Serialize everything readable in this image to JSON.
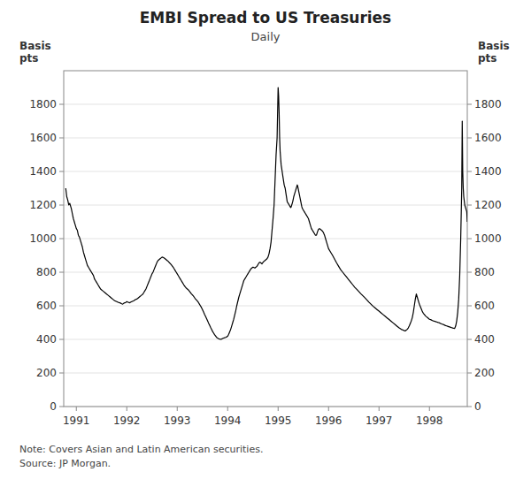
{
  "chart_data": {
    "type": "line",
    "title": "EMBI Spread to US Treasuries",
    "subtitle": "Daily",
    "ylabel": "Basis\npts",
    "y2label": "Basis\npts",
    "note": "Note: Covers Asian and Latin American securities.\nSource: JP Morgan.",
    "color": "#000000",
    "grid": true,
    "xlim": [
      1990.75,
      1998.75
    ],
    "xticks": [
      1991,
      1992,
      1993,
      1994,
      1995,
      1996,
      1997,
      1998
    ],
    "ylim": [
      0,
      2000
    ],
    "yticks": [
      0,
      200,
      400,
      600,
      800,
      1000,
      1200,
      1400,
      1600,
      1800
    ],
    "y2lim": [
      0,
      2000
    ],
    "y2ticks": [
      0,
      200,
      400,
      600,
      800,
      1000,
      1200,
      1400,
      1600,
      1800
    ],
    "x": [
      1990.79,
      1990.81,
      1990.83,
      1990.85,
      1990.87,
      1990.9,
      1990.92,
      1990.94,
      1990.96,
      1990.98,
      1991,
      1991.02,
      1991.04,
      1991.06,
      1991.08,
      1991.1,
      1991.12,
      1991.14,
      1991.16,
      1991.18,
      1991.2,
      1991.22,
      1991.24,
      1991.26,
      1991.28,
      1991.3,
      1991.32,
      1991.34,
      1991.36,
      1991.38,
      1991.4,
      1991.42,
      1991.44,
      1991.46,
      1991.48,
      1991.5,
      1991.52,
      1991.54,
      1991.56,
      1991.58,
      1991.6,
      1991.62,
      1991.64,
      1991.66,
      1991.68,
      1991.7,
      1991.72,
      1991.74,
      1991.76,
      1991.78,
      1991.8,
      1991.82,
      1991.84,
      1991.86,
      1991.88,
      1991.9,
      1991.92,
      1991.94,
      1991.96,
      1991.98,
      1992,
      1992.02,
      1992.04,
      1992.06,
      1992.08,
      1992.1,
      1992.12,
      1992.14,
      1992.16,
      1992.18,
      1992.2,
      1992.22,
      1992.24,
      1992.26,
      1992.28,
      1992.3,
      1992.32,
      1992.34,
      1992.36,
      1992.38,
      1992.4,
      1992.42,
      1992.44,
      1992.46,
      1992.48,
      1992.5,
      1992.52,
      1992.54,
      1992.56,
      1992.58,
      1992.6,
      1992.62,
      1992.64,
      1992.66,
      1992.68,
      1992.7,
      1992.72,
      1992.74,
      1992.76,
      1992.78,
      1992.8,
      1992.82,
      1992.84,
      1992.86,
      1992.88,
      1992.9,
      1992.92,
      1992.94,
      1992.96,
      1992.98,
      1993,
      1993.02,
      1993.04,
      1993.06,
      1993.08,
      1993.1,
      1993.12,
      1993.14,
      1993.16,
      1993.18,
      1993.2,
      1993.22,
      1993.24,
      1993.26,
      1993.28,
      1993.3,
      1993.32,
      1993.34,
      1993.36,
      1993.38,
      1993.4,
      1993.42,
      1993.44,
      1993.46,
      1993.48,
      1993.5,
      1993.52,
      1993.54,
      1993.56,
      1993.58,
      1993.6,
      1993.62,
      1993.64,
      1993.66,
      1993.68,
      1993.7,
      1993.72,
      1993.74,
      1993.76,
      1993.78,
      1993.8,
      1993.82,
      1993.84,
      1993.86,
      1993.88,
      1993.9,
      1993.92,
      1993.94,
      1993.96,
      1993.98,
      1994,
      1994.02,
      1994.04,
      1994.06,
      1994.08,
      1994.1,
      1994.12,
      1994.14,
      1994.16,
      1994.18,
      1994.2,
      1994.22,
      1994.24,
      1994.26,
      1994.28,
      1994.3,
      1994.32,
      1994.34,
      1994.36,
      1994.38,
      1994.4,
      1994.42,
      1994.44,
      1994.46,
      1994.48,
      1994.5,
      1994.52,
      1994.54,
      1994.56,
      1994.58,
      1994.6,
      1994.62,
      1994.64,
      1994.66,
      1994.68,
      1994.7,
      1994.72,
      1994.74,
      1994.76,
      1994.78,
      1994.8,
      1994.82,
      1994.84,
      1994.86,
      1994.88,
      1994.9,
      1994.92,
      1994.94,
      1994.96,
      1994.98,
      1995,
      1995.01,
      1995.02,
      1995.03,
      1995.04,
      1995.05,
      1995.06,
      1995.07,
      1995.08,
      1995.09,
      1995.1,
      1995.11,
      1995.12,
      1995.13,
      1995.14,
      1995.15,
      1995.16,
      1995.17,
      1995.18,
      1995.19,
      1995.2,
      1995.21,
      1995.22,
      1995.23,
      1995.24,
      1995.25,
      1995.26,
      1995.27,
      1995.28,
      1995.29,
      1995.3,
      1995.31,
      1995.32,
      1995.33,
      1995.34,
      1995.35,
      1995.36,
      1995.37,
      1995.38,
      1995.39,
      1995.4,
      1995.41,
      1995.42,
      1995.43,
      1995.44,
      1995.45,
      1995.46,
      1995.47,
      1995.48,
      1995.5,
      1995.52,
      1995.54,
      1995.56,
      1995.58,
      1995.6,
      1995.62,
      1995.64,
      1995.66,
      1995.68,
      1995.7,
      1995.72,
      1995.74,
      1995.76,
      1995.78,
      1995.8,
      1995.82,
      1995.84,
      1995.86,
      1995.88,
      1995.9,
      1995.92,
      1995.94,
      1995.96,
      1995.98,
      1996,
      1996.04,
      1996.08,
      1996.12,
      1996.16,
      1996.2,
      1996.24,
      1996.28,
      1996.32,
      1996.36,
      1996.4,
      1996.44,
      1996.48,
      1996.52,
      1996.56,
      1996.6,
      1996.64,
      1996.68,
      1996.72,
      1996.76,
      1996.8,
      1996.84,
      1996.88,
      1996.92,
      1996.96,
      1997,
      1997.04,
      1997.08,
      1997.12,
      1997.16,
      1997.2,
      1997.24,
      1997.28,
      1997.32,
      1997.36,
      1997.4,
      1997.44,
      1997.48,
      1997.5,
      1997.52,
      1997.54,
      1997.56,
      1997.58,
      1997.6,
      1997.62,
      1997.64,
      1997.66,
      1997.68,
      1997.7,
      1997.72,
      1997.74,
      1997.76,
      1997.78,
      1997.8,
      1997.82,
      1997.84,
      1997.86,
      1997.88,
      1997.9,
      1997.92,
      1997.94,
      1997.96,
      1997.98,
      1998,
      1998.02,
      1998.04,
      1998.06,
      1998.08,
      1998.1,
      1998.12,
      1998.14,
      1998.16,
      1998.18,
      1998.2,
      1998.22,
      1998.24,
      1998.26,
      1998.28,
      1998.3,
      1998.32,
      1998.34,
      1998.36,
      1998.38,
      1998.4,
      1998.42,
      1998.44,
      1998.46,
      1998.48,
      1998.5,
      1998.52,
      1998.54,
      1998.56,
      1998.58,
      1998.6,
      1998.62,
      1998.64,
      1998.65,
      1998.66,
      1998.67,
      1998.68,
      1998.7,
      1998.72,
      1998.74,
      1998.75
    ],
    "values": [
      1300,
      1250,
      1230,
      1200,
      1210,
      1180,
      1150,
      1120,
      1100,
      1080,
      1060,
      1050,
      1020,
      1010,
      990,
      970,
      950,
      920,
      900,
      880,
      860,
      840,
      830,
      820,
      810,
      800,
      790,
      780,
      760,
      750,
      740,
      730,
      720,
      710,
      700,
      695,
      690,
      685,
      680,
      675,
      670,
      665,
      660,
      655,
      650,
      645,
      640,
      635,
      630,
      628,
      625,
      622,
      620,
      618,
      615,
      612,
      610,
      615,
      618,
      620,
      625,
      622,
      620,
      618,
      622,
      625,
      628,
      630,
      635,
      638,
      640,
      645,
      650,
      655,
      660,
      665,
      670,
      680,
      690,
      700,
      715,
      730,
      745,
      760,
      775,
      790,
      800,
      815,
      830,
      845,
      860,
      870,
      875,
      880,
      885,
      890,
      888,
      885,
      880,
      875,
      870,
      865,
      858,
      852,
      845,
      838,
      830,
      820,
      810,
      800,
      790,
      780,
      770,
      760,
      750,
      740,
      730,
      720,
      712,
      705,
      700,
      695,
      688,
      680,
      672,
      665,
      658,
      650,
      642,
      635,
      628,
      620,
      610,
      600,
      590,
      578,
      565,
      550,
      538,
      525,
      512,
      498,
      485,
      472,
      460,
      448,
      438,
      428,
      420,
      412,
      408,
      404,
      402,
      400,
      402,
      405,
      408,
      410,
      412,
      415,
      418,
      430,
      445,
      460,
      480,
      500,
      520,
      545,
      570,
      600,
      625,
      650,
      670,
      690,
      710,
      730,
      750,
      760,
      770,
      780,
      790,
      800,
      810,
      820,
      825,
      830,
      828,
      825,
      830,
      835,
      845,
      855,
      860,
      855,
      850,
      858,
      865,
      870,
      875,
      880,
      890,
      910,
      940,
      980,
      1050,
      1120,
      1200,
      1350,
      1500,
      1600,
      1900,
      1850,
      1750,
      1600,
      1520,
      1480,
      1440,
      1420,
      1400,
      1380,
      1360,
      1340,
      1320,
      1310,
      1300,
      1280,
      1260,
      1240,
      1220,
      1215,
      1210,
      1205,
      1200,
      1195,
      1190,
      1185,
      1190,
      1200,
      1210,
      1220,
      1235,
      1250,
      1260,
      1270,
      1280,
      1290,
      1300,
      1310,
      1320,
      1310,
      1295,
      1280,
      1265,
      1250,
      1235,
      1220,
      1205,
      1190,
      1180,
      1170,
      1160,
      1150,
      1140,
      1130,
      1120,
      1100,
      1080,
      1060,
      1050,
      1040,
      1030,
      1020,
      1020,
      1040,
      1055,
      1060,
      1055,
      1050,
      1045,
      1035,
      1020,
      1000,
      980,
      960,
      940,
      920,
      900,
      878,
      855,
      835,
      815,
      800,
      785,
      770,
      755,
      740,
      725,
      710,
      698,
      685,
      672,
      660,
      648,
      635,
      622,
      610,
      598,
      588,
      578,
      568,
      558,
      548,
      538,
      528,
      518,
      508,
      498,
      488,
      478,
      468,
      460,
      455,
      452,
      450,
      455,
      460,
      468,
      480,
      495,
      510,
      530,
      560,
      600,
      640,
      670,
      650,
      630,
      610,
      595,
      580,
      565,
      555,
      548,
      540,
      535,
      530,
      525,
      520,
      518,
      515,
      512,
      510,
      508,
      506,
      504,
      502,
      500,
      498,
      495,
      492,
      490,
      488,
      485,
      482,
      480,
      478,
      476,
      474,
      472,
      470,
      468,
      466,
      465,
      480,
      510,
      560,
      640,
      780,
      1000,
      1300,
      1700,
      1400,
      1300,
      1250,
      1200,
      1180,
      1160,
      1100
    ]
  }
}
